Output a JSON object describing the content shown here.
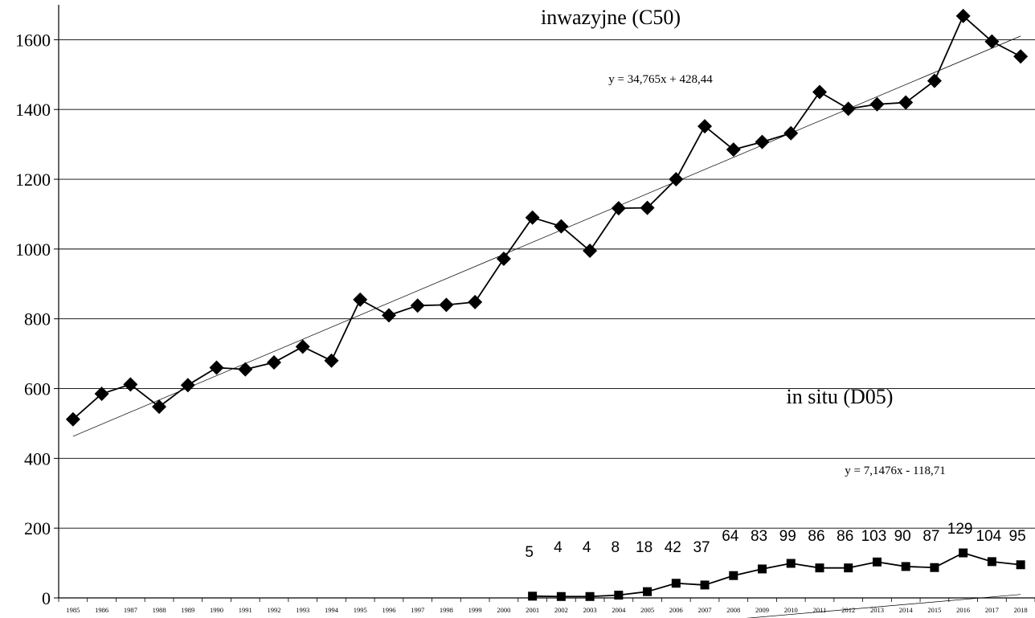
{
  "chart_data": {
    "type": "line",
    "x": [
      1985,
      1986,
      1987,
      1988,
      1989,
      1990,
      1991,
      1992,
      1993,
      1994,
      1995,
      1996,
      1997,
      1998,
      1999,
      2000,
      2001,
      2002,
      2003,
      2004,
      2005,
      2006,
      2007,
      2008,
      2009,
      2010,
      2011,
      2012,
      2013,
      2014,
      2015,
      2016,
      2017,
      2018
    ],
    "x_tick_labels": [
      "1985",
      "1986",
      "1987",
      "1988",
      "1989",
      "1990",
      "1991",
      "1992",
      "1993",
      "1994",
      "1995",
      "1996",
      "1997",
      "1998",
      "1999",
      "2000",
      "2001",
      "2002",
      "2003",
      "2004",
      "2005",
      "2006",
      "2007",
      "2008",
      "2009",
      "2010",
      "2011",
      "2012",
      "2013",
      "2014",
      "2015",
      "2016",
      "2017",
      "2018"
    ],
    "y_tick_labels": [
      "0",
      "200",
      "400",
      "600",
      "800",
      "1000",
      "1200",
      "1400",
      "1600"
    ],
    "ylim": [
      0,
      1700
    ],
    "grid": "horizontal",
    "series": [
      {
        "name": "inwazyjne (C50)",
        "marker": "diamond",
        "x": [
          1985,
          1986,
          1987,
          1988,
          1989,
          1990,
          1991,
          1992,
          1993,
          1994,
          1995,
          1996,
          1997,
          1998,
          1999,
          2000,
          2001,
          2002,
          2003,
          2004,
          2005,
          2006,
          2007,
          2008,
          2009,
          2010,
          2011,
          2012,
          2013,
          2014,
          2015,
          2016,
          2017,
          2018
        ],
        "values": [
          512,
          585,
          612,
          548,
          610,
          660,
          655,
          675,
          720,
          680,
          855,
          810,
          838,
          840,
          848,
          972,
          1090,
          1065,
          995,
          1117,
          1118,
          1200,
          1352,
          1285,
          1307,
          1332,
          1450,
          1402,
          1415,
          1420,
          1482,
          1668,
          1595,
          1552
        ],
        "trend_equation": "y = 34,765x + 428,44",
        "trend": {
          "slope": 34.765,
          "intercept": 428.44
        }
      },
      {
        "name": "in situ (D05)",
        "marker": "square",
        "x": [
          2001,
          2002,
          2003,
          2004,
          2005,
          2006,
          2007,
          2008,
          2009,
          2010,
          2011,
          2012,
          2013,
          2014,
          2015,
          2016,
          2017,
          2018
        ],
        "values": [
          5,
          4,
          4,
          8,
          18,
          42,
          37,
          64,
          83,
          99,
          86,
          86,
          103,
          90,
          87,
          129,
          104,
          95
        ],
        "data_labels": [
          "5",
          "4",
          "4",
          "8",
          "18",
          "42",
          "37",
          "64",
          "83",
          "99",
          "86",
          "86",
          "103",
          "90",
          "87",
          "129",
          "104",
          "95"
        ],
        "trend_equation": "y = 7,1476x - 118,71",
        "trend": {
          "slope": 7.1476,
          "intercept": -118.71
        }
      }
    ]
  }
}
